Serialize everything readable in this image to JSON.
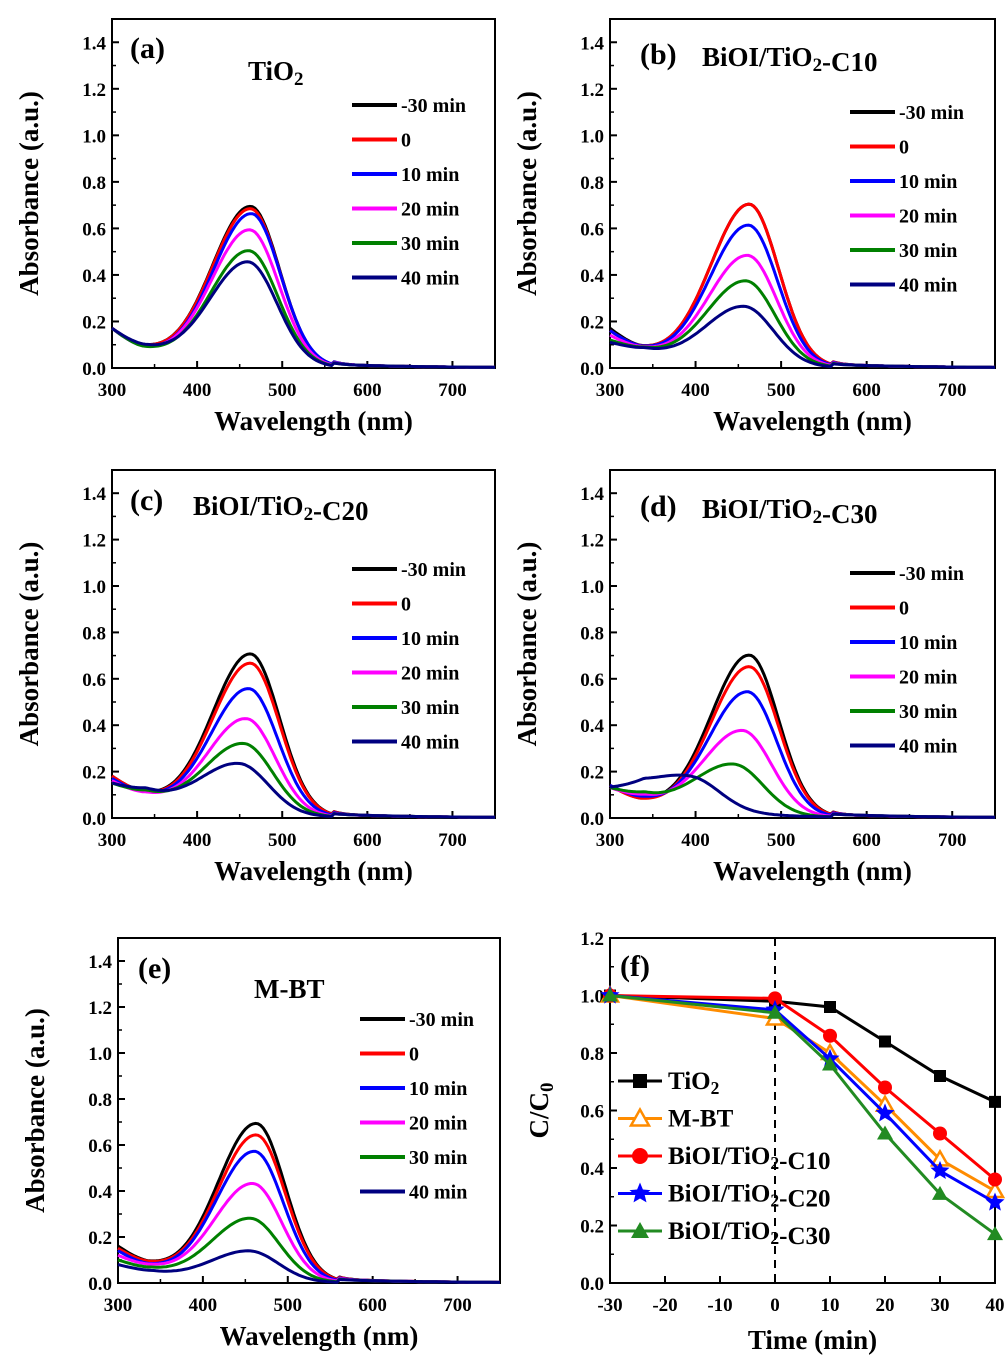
{
  "colors": {
    "t_m30": "#000000",
    "t_0": "#ff0000",
    "t_10": "#0000ff",
    "t_20": "#ff00ff",
    "t_30": "#008000",
    "t_40": "#000080",
    "TiO2": "#000000",
    "M-BT": "#ff8c00",
    "C10": "#ff0000",
    "C20": "#0000ff",
    "C30": "#228b22"
  },
  "chart_data": [
    {
      "panel": "(a)",
      "title": "TiO2",
      "type": "line",
      "xlabel": "Wavelength (nm)",
      "ylabel": "Absorbance (a.u.)",
      "xlim": [
        300,
        750
      ],
      "ylim": [
        0.0,
        1.5
      ],
      "xticks": [
        "300",
        "400",
        "500",
        "600",
        "700"
      ],
      "yticks": [
        "0.0",
        "0.2",
        "0.4",
        "0.6",
        "0.8",
        "1.0",
        "1.2",
        "1.4"
      ],
      "legend": "top-right",
      "series": [
        {
          "name": "-30 min",
          "color_key": "t_m30",
          "peak": 0.68,
          "center": 463,
          "base300": 0.17,
          "min340": 0.085
        },
        {
          "name": "0",
          "color_key": "t_0",
          "peak": 0.67,
          "center": 463,
          "base300": 0.17,
          "min340": 0.085
        },
        {
          "name": "10 min",
          "color_key": "t_10",
          "peak": 0.65,
          "center": 464,
          "base300": 0.17,
          "min340": 0.08
        },
        {
          "name": "20 min",
          "color_key": "t_20",
          "peak": 0.58,
          "center": 462,
          "base300": 0.17,
          "min340": 0.08
        },
        {
          "name": "30 min",
          "color_key": "t_30",
          "peak": 0.49,
          "center": 461,
          "base300": 0.17,
          "min340": 0.08
        },
        {
          "name": "40 min",
          "color_key": "t_40",
          "peak": 0.44,
          "center": 460,
          "base300": 0.17,
          "min340": 0.09
        }
      ]
    },
    {
      "panel": "(b)",
      "title": "BiOI/TiO2-C10",
      "type": "line",
      "xlabel": "Wavelength (nm)",
      "ylabel": "Absorbance (a.u.)",
      "xlim": [
        300,
        750
      ],
      "ylim": [
        0.0,
        1.5
      ],
      "xticks": [
        "300",
        "400",
        "500",
        "600",
        "700"
      ],
      "yticks": [
        "0.0",
        "0.2",
        "0.4",
        "0.6",
        "0.8",
        "1.0",
        "1.2",
        "1.4"
      ],
      "legend": "top-right",
      "series": [
        {
          "name": "-30 min",
          "color_key": "t_m30",
          "peak": 0.69,
          "center": 463,
          "base300": 0.17,
          "min340": 0.08
        },
        {
          "name": "0",
          "color_key": "t_0",
          "peak": 0.69,
          "center": 463,
          "base300": 0.16,
          "min340": 0.08
        },
        {
          "name": "10 min",
          "color_key": "t_10",
          "peak": 0.6,
          "center": 462,
          "base300": 0.16,
          "min340": 0.08
        },
        {
          "name": "20 min",
          "color_key": "t_20",
          "peak": 0.47,
          "center": 461,
          "base300": 0.14,
          "min340": 0.08
        },
        {
          "name": "30 min",
          "color_key": "t_30",
          "peak": 0.36,
          "center": 459,
          "base300": 0.12,
          "min340": 0.08
        },
        {
          "name": "40 min",
          "color_key": "t_40",
          "peak": 0.25,
          "center": 457,
          "base300": 0.11,
          "min340": 0.08
        }
      ]
    },
    {
      "panel": "(c)",
      "title": "BiOI/TiO2-C20",
      "type": "line",
      "xlabel": "Wavelength (nm)",
      "ylabel": "Absorbance (a.u.)",
      "xlim": [
        300,
        750
      ],
      "ylim": [
        0.0,
        1.5
      ],
      "xticks": [
        "300",
        "400",
        "500",
        "600",
        "700"
      ],
      "yticks": [
        "0.0",
        "0.2",
        "0.4",
        "0.6",
        "0.8",
        "1.0",
        "1.2",
        "1.4"
      ],
      "legend": "top-right",
      "series": [
        {
          "name": "-30 min",
          "color_key": "t_m30",
          "peak": 0.69,
          "center": 463,
          "base300": 0.18,
          "min340": 0.1
        },
        {
          "name": "0",
          "color_key": "t_0",
          "peak": 0.65,
          "center": 463,
          "base300": 0.18,
          "min340": 0.1
        },
        {
          "name": "10 min",
          "color_key": "t_10",
          "peak": 0.54,
          "center": 461,
          "base300": 0.17,
          "min340": 0.1
        },
        {
          "name": "20 min",
          "color_key": "t_20",
          "peak": 0.41,
          "center": 458,
          "base300": 0.16,
          "min340": 0.1
        },
        {
          "name": "30 min",
          "color_key": "t_30",
          "peak": 0.3,
          "center": 455,
          "base300": 0.15,
          "min340": 0.11
        },
        {
          "name": "40 min",
          "color_key": "t_40",
          "peak": 0.21,
          "center": 450,
          "base300": 0.15,
          "min340": 0.12
        }
      ]
    },
    {
      "panel": "(d)",
      "title": "BiOI/TiO2-C30",
      "type": "line",
      "xlabel": "Wavelength (nm)",
      "ylabel": "Absorbance (a.u.)",
      "xlim": [
        300,
        750
      ],
      "ylim": [
        0.0,
        1.5
      ],
      "xticks": [
        "300",
        "400",
        "500",
        "600",
        "700"
      ],
      "yticks": [
        "0.0",
        "0.2",
        "0.4",
        "0.6",
        "0.8",
        "1.0",
        "1.2",
        "1.4"
      ],
      "legend": "top-right",
      "series": [
        {
          "name": "-30 min",
          "color_key": "t_m30",
          "peak": 0.69,
          "center": 463,
          "base300": 0.14,
          "min340": 0.07
        },
        {
          "name": "0",
          "color_key": "t_0",
          "peak": 0.64,
          "center": 463,
          "base300": 0.14,
          "min340": 0.07
        },
        {
          "name": "10 min",
          "color_key": "t_10",
          "peak": 0.53,
          "center": 461,
          "base300": 0.14,
          "min340": 0.08
        },
        {
          "name": "20 min",
          "color_key": "t_20",
          "peak": 0.36,
          "center": 455,
          "base300": 0.13,
          "min340": 0.09
        },
        {
          "name": "30 min",
          "color_key": "t_30",
          "peak": 0.21,
          "center": 445,
          "base300": 0.13,
          "min340": 0.1
        },
        {
          "name": "40 min",
          "color_key": "t_40",
          "peak": 0.13,
          "center": 395,
          "base300": 0.12,
          "min340": 0.11
        }
      ]
    },
    {
      "panel": "(e)",
      "title": "M-BT",
      "type": "line",
      "xlabel": "Wavelength (nm)",
      "ylabel": "Absorbance (a.u.)",
      "xlim": [
        300,
        750
      ],
      "ylim": [
        0.0,
        1.5
      ],
      "xticks": [
        "300",
        "400",
        "500",
        "600",
        "700"
      ],
      "yticks": [
        "0.0",
        "0.2",
        "0.4",
        "0.6",
        "0.8",
        "1.0",
        "1.2",
        "1.4"
      ],
      "legend": "top-right",
      "series": [
        {
          "name": "-30 min",
          "color_key": "t_m30",
          "peak": 0.68,
          "center": 463,
          "base300": 0.16,
          "min340": 0.08
        },
        {
          "name": "0",
          "color_key": "t_0",
          "peak": 0.63,
          "center": 463,
          "base300": 0.15,
          "min340": 0.08
        },
        {
          "name": "10 min",
          "color_key": "t_10",
          "peak": 0.56,
          "center": 461,
          "base300": 0.14,
          "min340": 0.07
        },
        {
          "name": "20 min",
          "color_key": "t_20",
          "peak": 0.42,
          "center": 459,
          "base300": 0.12,
          "min340": 0.07
        },
        {
          "name": "30 min",
          "color_key": "t_30",
          "peak": 0.27,
          "center": 456,
          "base300": 0.1,
          "min340": 0.06
        },
        {
          "name": "40 min",
          "color_key": "t_40",
          "peak": 0.13,
          "center": 455,
          "base300": 0.08,
          "min340": 0.05
        }
      ]
    },
    {
      "panel": "(f)",
      "type": "line",
      "xlabel": "Time (min)",
      "ylabel": "C/C0",
      "xlim": [
        -30,
        40
      ],
      "ylim": [
        0.0,
        1.2
      ],
      "xticks": [
        "-30",
        "-20",
        "-10",
        "0",
        "10",
        "20",
        "30",
        "40"
      ],
      "yticks": [
        "0.0",
        "0.2",
        "0.4",
        "0.6",
        "0.8",
        "1.0",
        "1.2"
      ],
      "legend": "bottom-left",
      "x": [
        -30,
        0,
        10,
        20,
        30,
        40
      ],
      "series": [
        {
          "name": "TiO2",
          "color_key": "TiO2",
          "marker": "square",
          "values": [
            1.0,
            0.98,
            0.96,
            0.84,
            0.72,
            0.63
          ]
        },
        {
          "name": "M-BT",
          "color_key": "M-BT",
          "marker": "triangle-open",
          "values": [
            1.0,
            0.92,
            0.8,
            0.62,
            0.43,
            0.32
          ]
        },
        {
          "name": "BiOI/TiO2-C10",
          "color_key": "C10",
          "marker": "circle",
          "values": [
            1.0,
            0.99,
            0.86,
            0.68,
            0.52,
            0.36
          ]
        },
        {
          "name": "BiOI/TiO2-C20",
          "color_key": "C20",
          "marker": "star",
          "values": [
            1.0,
            0.95,
            0.78,
            0.59,
            0.39,
            0.28
          ]
        },
        {
          "name": "BiOI/TiO2-C30",
          "color_key": "C30",
          "marker": "triangle",
          "values": [
            1.0,
            0.94,
            0.76,
            0.52,
            0.31,
            0.17
          ]
        }
      ]
    }
  ]
}
